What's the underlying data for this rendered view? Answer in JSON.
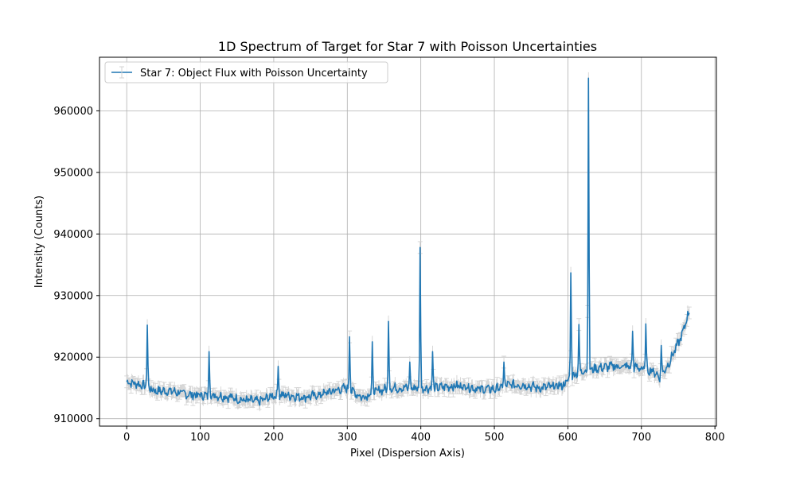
{
  "chart_data": {
    "type": "line",
    "title": "1D Spectrum of Target for Star 7 with Poisson Uncertainties",
    "xlabel": "Pixel (Dispersion Axis)",
    "ylabel": "Intensity (Counts)",
    "xlim": [
      -37,
      802
    ],
    "ylim": [
      908800,
      968700
    ],
    "xticks": [
      0,
      100,
      200,
      300,
      400,
      500,
      600,
      700,
      800
    ],
    "yticks": [
      910000,
      920000,
      930000,
      940000,
      950000,
      960000
    ],
    "grid": true,
    "legend_position": "top-left",
    "colors": {
      "line": "#1f77b4",
      "errorbar": "#d3d3d3",
      "grid": "#b0b0b0"
    },
    "series": [
      {
        "name": "Star 7: Object Flux with Poisson Uncertainty",
        "error_approx": 960,
        "baseline_x": [
          0,
          20,
          40,
          60,
          80,
          100,
          120,
          140,
          160,
          180,
          200,
          220,
          240,
          260,
          280,
          300,
          320,
          340,
          360,
          380,
          400,
          420,
          440,
          460,
          480,
          500,
          520,
          540,
          560,
          580,
          595,
          605,
          620,
          640,
          660,
          680,
          700,
          715,
          725,
          735,
          745,
          755,
          765
        ],
        "baseline_y": [
          916000,
          915500,
          914500,
          914500,
          914000,
          913800,
          913800,
          913500,
          913000,
          912800,
          913800,
          913800,
          913500,
          913800,
          914500,
          915000,
          913500,
          914500,
          915000,
          915000,
          915000,
          915000,
          915300,
          915300,
          914800,
          914800,
          915500,
          915500,
          915000,
          915200,
          915500,
          917000,
          917800,
          918200,
          918500,
          918500,
          918200,
          917800,
          916800,
          918500,
          921000,
          923500,
          927500
        ],
        "peaks": [
          {
            "x": 28,
            "y": 925200
          },
          {
            "x": 112,
            "y": 920900
          },
          {
            "x": 206,
            "y": 918500
          },
          {
            "x": 303,
            "y": 923300
          },
          {
            "x": 334,
            "y": 922500
          },
          {
            "x": 356,
            "y": 925800
          },
          {
            "x": 385,
            "y": 919200
          },
          {
            "x": 399,
            "y": 937800
          },
          {
            "x": 416,
            "y": 920900
          },
          {
            "x": 513,
            "y": 919200
          },
          {
            "x": 604,
            "y": 933700
          },
          {
            "x": 615,
            "y": 925300
          },
          {
            "x": 628,
            "y": 965300
          },
          {
            "x": 688,
            "y": 924200
          },
          {
            "x": 706,
            "y": 925400
          },
          {
            "x": 727,
            "y": 921900
          }
        ]
      }
    ]
  }
}
